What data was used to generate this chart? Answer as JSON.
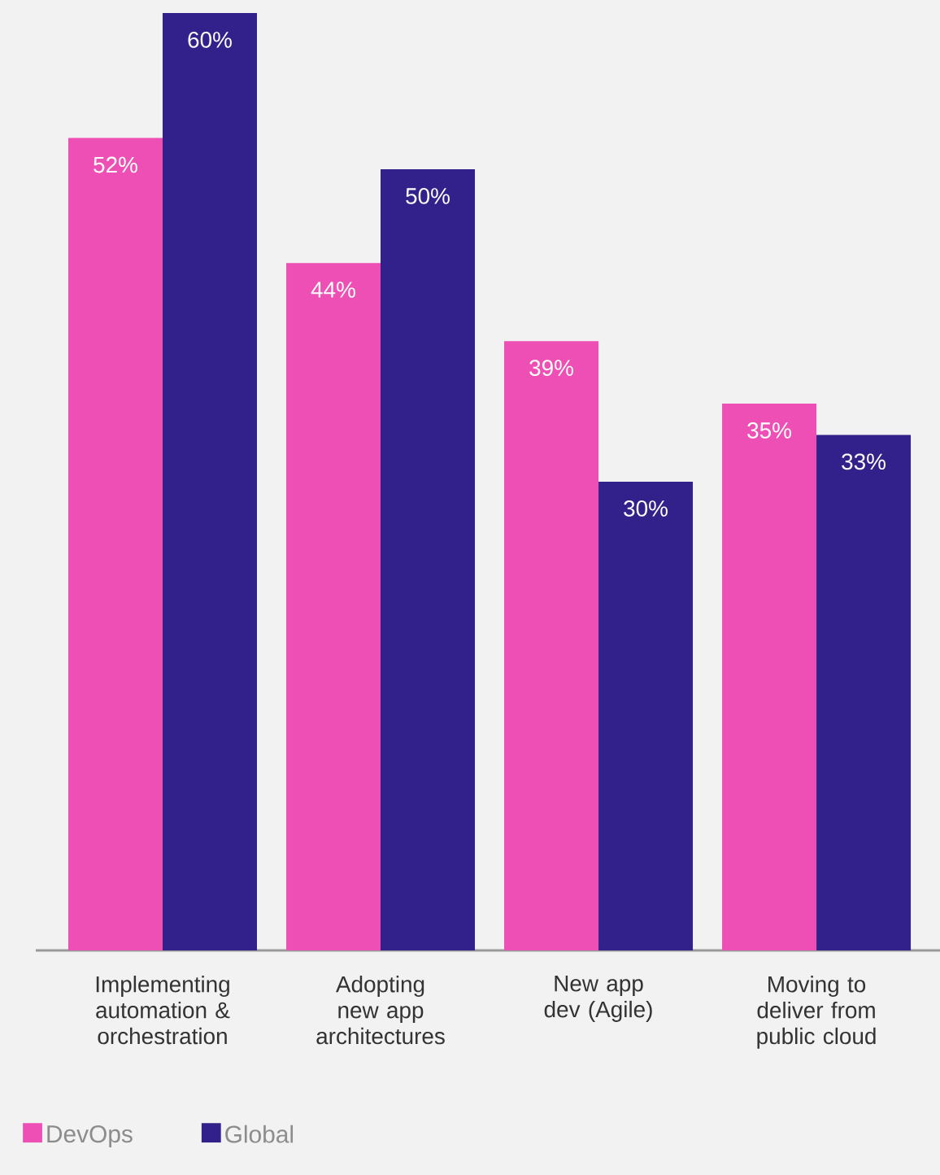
{
  "chart_data": {
    "type": "bar",
    "categories": [
      "Implementing automation & orchestration",
      "Adopting new app architectures",
      "New app dev (Agile)",
      "Moving to deliver from public cloud"
    ],
    "series": [
      {
        "name": "DevOps",
        "color": "#ee4fb5",
        "values": [
          52,
          44,
          39,
          35
        ],
        "value_labels": [
          "52%",
          "44%",
          "39%",
          "35%"
        ]
      },
      {
        "name": "Global",
        "color": "#32218a",
        "values": [
          60,
          50,
          30,
          33
        ],
        "value_labels": [
          "60%",
          "50%",
          "30%",
          "33%"
        ]
      }
    ],
    "legend": "bottom left"
  }
}
